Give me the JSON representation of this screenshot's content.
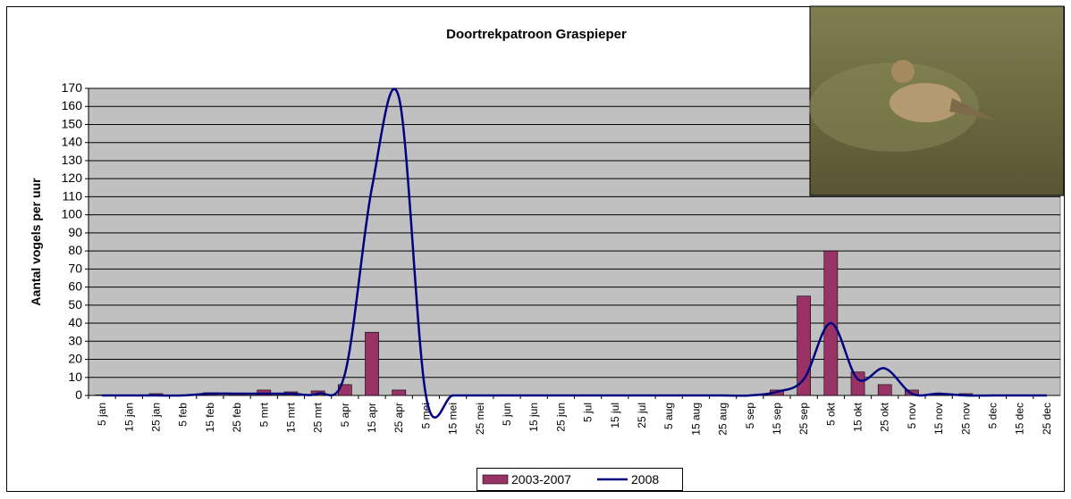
{
  "chart_data": {
    "type": "bar_line",
    "title": "Doortrekpatroon Graspieper",
    "y_label": "Aantal vogels per uur",
    "categories": [
      "5 jan",
      "15 jan",
      "25 jan",
      "5 feb",
      "15 feb",
      "25 feb",
      "5 mrt",
      "15 mrt",
      "25 mrt",
      "5 apr",
      "15 apr",
      "25 apr",
      "5 mei",
      "15 mei",
      "25 mei",
      "5 jun",
      "15 jun",
      "25 jun",
      "5 jul",
      "15 jul",
      "25 jul",
      "5 aug",
      "15 aug",
      "25 aug",
      "5 sep",
      "15 sep",
      "25 sep",
      "5 okt",
      "15 okt",
      "25 okt",
      "5 nov",
      "15 nov",
      "25 nov",
      "5 dec",
      "15 dec",
      "25 dec"
    ],
    "series": [
      {
        "name": "2003-2007",
        "type": "bar",
        "color": "#993366",
        "values": [
          0.3,
          0,
          1,
          0,
          1.5,
          1,
          3,
          2,
          2.5,
          6,
          35,
          3,
          0,
          0,
          0,
          0,
          0,
          0,
          0,
          0,
          0,
          0,
          0,
          0,
          0,
          3,
          55,
          80,
          13,
          6,
          3,
          0.5,
          1,
          0,
          0,
          0
        ]
      },
      {
        "name": "2008",
        "type": "line",
        "color": "#000080",
        "values": [
          0,
          0,
          0,
          0,
          1,
          1,
          1,
          1,
          1,
          12,
          115,
          165,
          0,
          0,
          0,
          0,
          0,
          0,
          0,
          0,
          0,
          0,
          0,
          0,
          0,
          2,
          9,
          40,
          9,
          15,
          1,
          1,
          0,
          0,
          0,
          0
        ]
      }
    ],
    "ylim": [
      0,
      170
    ],
    "yticks": [
      0,
      10,
      20,
      30,
      40,
      50,
      60,
      70,
      80,
      90,
      100,
      110,
      120,
      130,
      140,
      150,
      160,
      170
    ],
    "grid": true,
    "legend": "bottom"
  }
}
